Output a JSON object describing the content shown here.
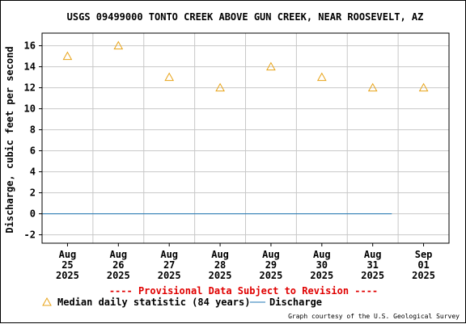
{
  "chart_data": {
    "type": "line",
    "title": "USGS 09499000 TONTO CREEK ABOVE GUN CREEK, NEAR ROOSEVELT, AZ",
    "ylabel": "Discharge, cubic feet per second",
    "xlabel": "",
    "ylim": [
      -2.8,
      17.2
    ],
    "yticks": [
      -2,
      0,
      2,
      4,
      6,
      8,
      10,
      12,
      14,
      16
    ],
    "y_tick_labels": [
      "-2",
      "0",
      "2",
      "4",
      "6",
      "8",
      "10",
      "12",
      "14",
      "16"
    ],
    "xlim": [
      "2025-08-24T12:00",
      "2025-09-01T12:00"
    ],
    "x_ticks": [
      {
        "date": "2025-08-25",
        "label": [
          "Aug",
          "25",
          "2025"
        ]
      },
      {
        "date": "2025-08-26",
        "label": [
          "Aug",
          "26",
          "2025"
        ]
      },
      {
        "date": "2025-08-27",
        "label": [
          "Aug",
          "27",
          "2025"
        ]
      },
      {
        "date": "2025-08-28",
        "label": [
          "Aug",
          "28",
          "2025"
        ]
      },
      {
        "date": "2025-08-29",
        "label": [
          "Aug",
          "29",
          "2025"
        ]
      },
      {
        "date": "2025-08-30",
        "label": [
          "Aug",
          "30",
          "2025"
        ]
      },
      {
        "date": "2025-08-31",
        "label": [
          "Aug",
          "31",
          "2025"
        ]
      },
      {
        "date": "2025-09-01",
        "label": [
          "Sep",
          "01",
          "2025"
        ]
      }
    ],
    "grid": true,
    "series": [
      {
        "name": "Median daily statistic (84 years)",
        "kind": "marker",
        "marker": "triangle",
        "color": "#e8a317",
        "points": [
          {
            "x": "2025-08-25",
            "y": 15
          },
          {
            "x": "2025-08-26",
            "y": 16
          },
          {
            "x": "2025-08-27",
            "y": 13
          },
          {
            "x": "2025-08-28",
            "y": 12
          },
          {
            "x": "2025-08-29",
            "y": 14
          },
          {
            "x": "2025-08-30",
            "y": 13
          },
          {
            "x": "2025-08-31",
            "y": 12
          },
          {
            "x": "2025-09-01",
            "y": 12
          }
        ]
      },
      {
        "name": "Discharge",
        "kind": "line",
        "color": "#1f77b4",
        "points": [
          {
            "x": "2025-08-24T12:00",
            "y": 0
          },
          {
            "x": "2025-08-31T09:00",
            "y": 0
          }
        ]
      }
    ],
    "legend_placement": "bottom"
  },
  "provisional_notice": "---- Provisional Data Subject to Revision ----",
  "credit": "Graph courtesy of the U.S. Geological Survey",
  "colors": {
    "grid": "#c8c8c8",
    "axis": "#000000",
    "notice": "#e00000",
    "median": "#e8a317",
    "discharge": "#1f77b4"
  }
}
